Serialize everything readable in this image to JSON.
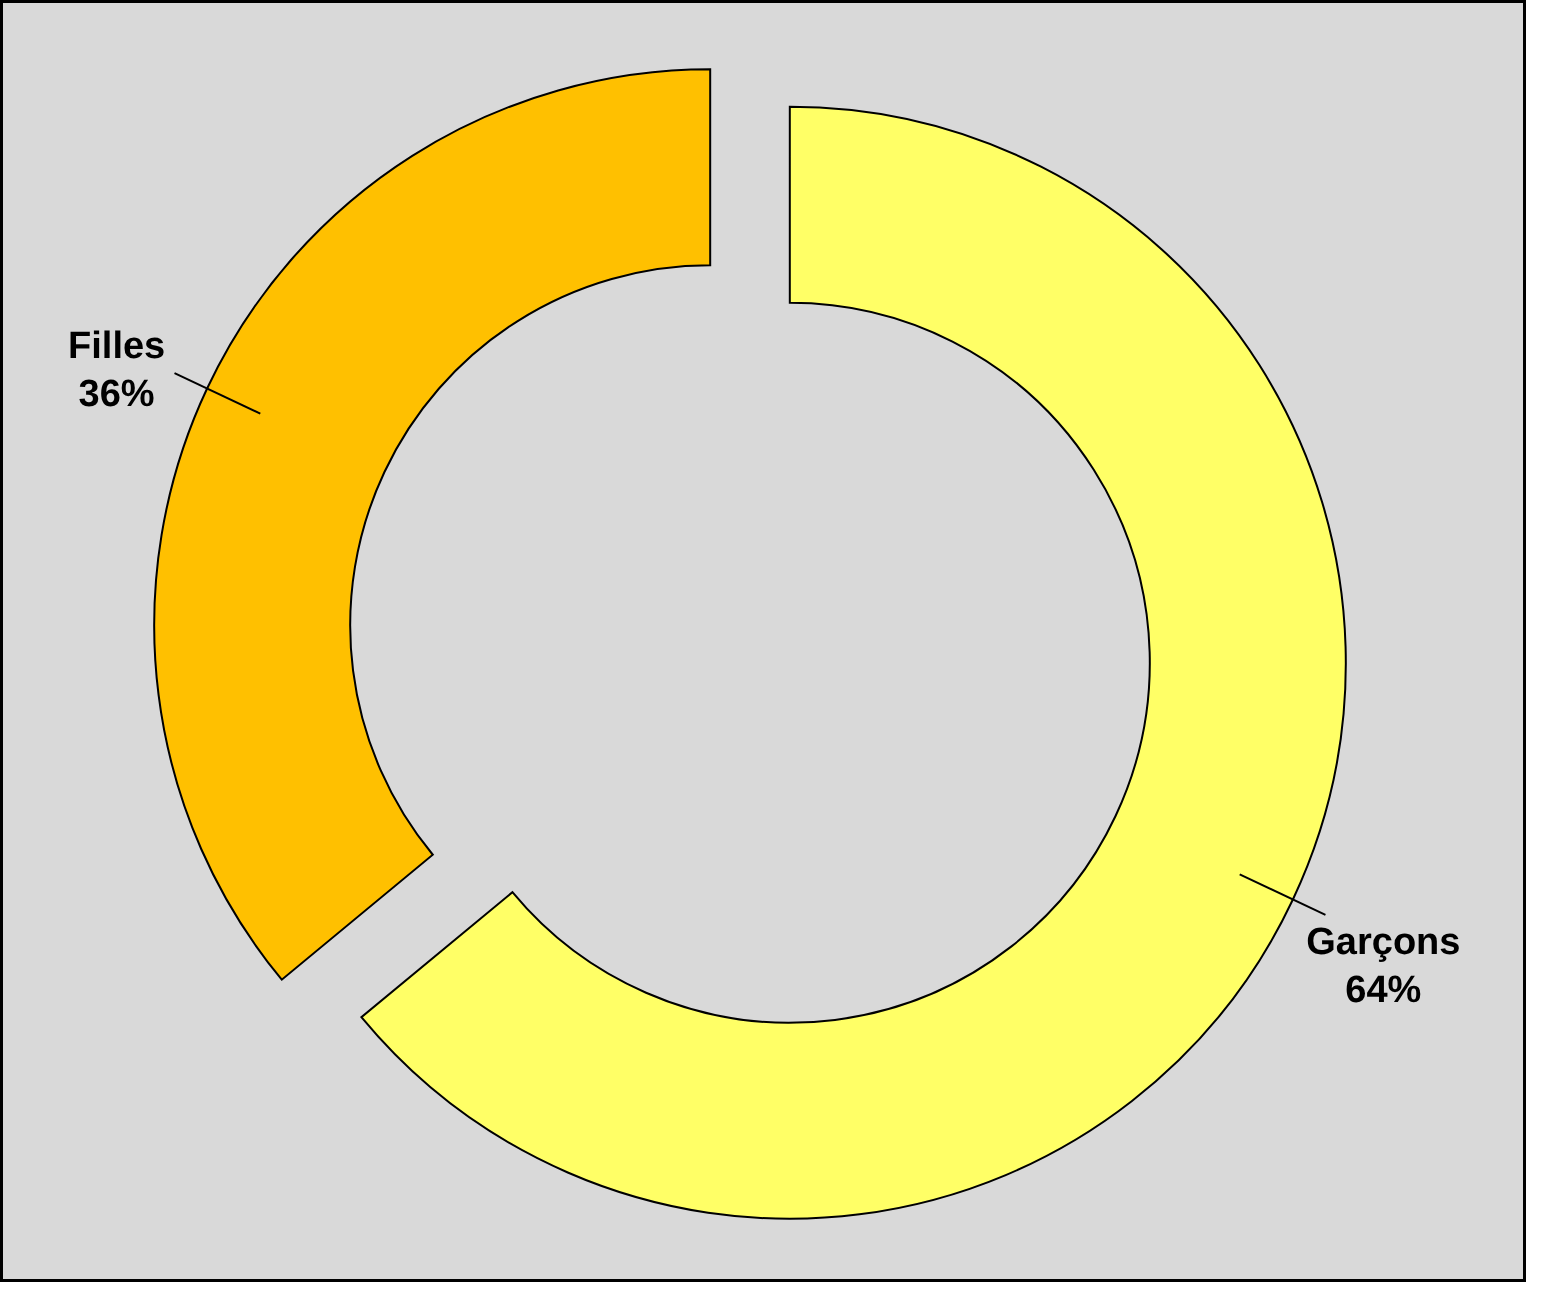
{
  "chart_data": {
    "type": "donut",
    "categories": [
      "Garçons",
      "Filles"
    ],
    "values": [
      64,
      36
    ],
    "colors": [
      "#ffff66",
      "#ffc000"
    ],
    "value_labels": [
      "64%",
      "36%"
    ]
  }
}
